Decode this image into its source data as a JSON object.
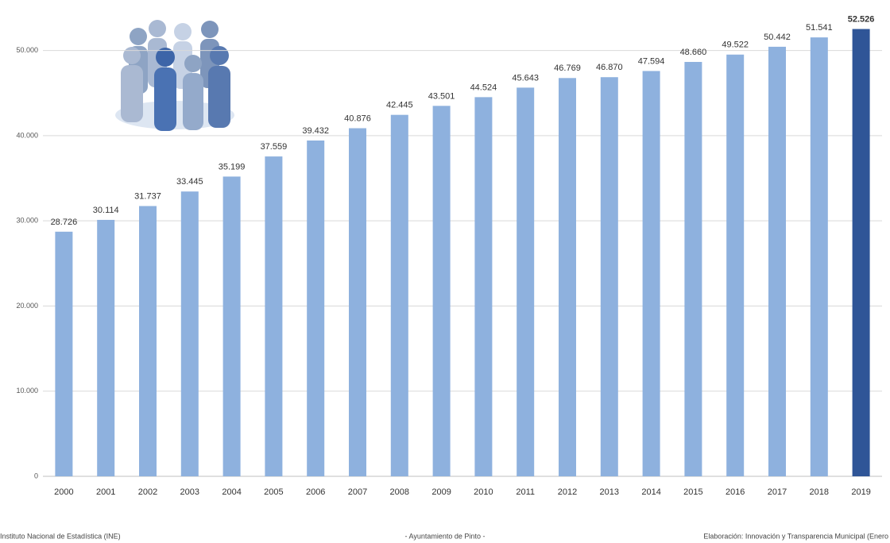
{
  "chart_data": {
    "type": "bar",
    "categories": [
      "2000",
      "2001",
      "2002",
      "2003",
      "2004",
      "2005",
      "2006",
      "2007",
      "2008",
      "2009",
      "2010",
      "2011",
      "2012",
      "2013",
      "2014",
      "2015",
      "2016",
      "2017",
      "2018",
      "2019"
    ],
    "values": [
      28726,
      30114,
      31737,
      33445,
      35199,
      37559,
      39432,
      40876,
      42445,
      43501,
      44524,
      45643,
      46769,
      46870,
      47594,
      48660,
      49522,
      50442,
      51541,
      52526
    ],
    "value_labels": [
      "28.726",
      "30.114",
      "31.737",
      "33.445",
      "35.199",
      "37.559",
      "39.432",
      "40.876",
      "42.445",
      "43.501",
      "44.524",
      "45.643",
      "46.769",
      "46.870",
      "47.594",
      "48.660",
      "49.522",
      "50.442",
      "51.541",
      "52.526"
    ],
    "colors": [
      "#8eb1de",
      "#8eb1de",
      "#8eb1de",
      "#8eb1de",
      "#8eb1de",
      "#8eb1de",
      "#8eb1de",
      "#8eb1de",
      "#8eb1de",
      "#8eb1de",
      "#8eb1de",
      "#8eb1de",
      "#8eb1de",
      "#8eb1de",
      "#8eb1de",
      "#8eb1de",
      "#8eb1de",
      "#8eb1de",
      "#8eb1de",
      "#2f5597"
    ],
    "ylim": [
      0,
      55000
    ],
    "yticks": [
      0,
      {
        "value": 10000,
        "label": "10.000"
      },
      {
        "value": 20000,
        "label": "20.000"
      },
      {
        "value": 30000,
        "label": "30.000"
      },
      {
        "value": 40000,
        "label": "40.000"
      },
      {
        "value": 50000,
        "label": "50.000"
      }
    ],
    "grid": true,
    "notes": [
      "Instituto Nacional de Estadística (INE)",
      "- Ayuntamiento de Pinto -",
      "Elaboración: Innovación y Transparencia Municipal (Enero"
    ]
  }
}
